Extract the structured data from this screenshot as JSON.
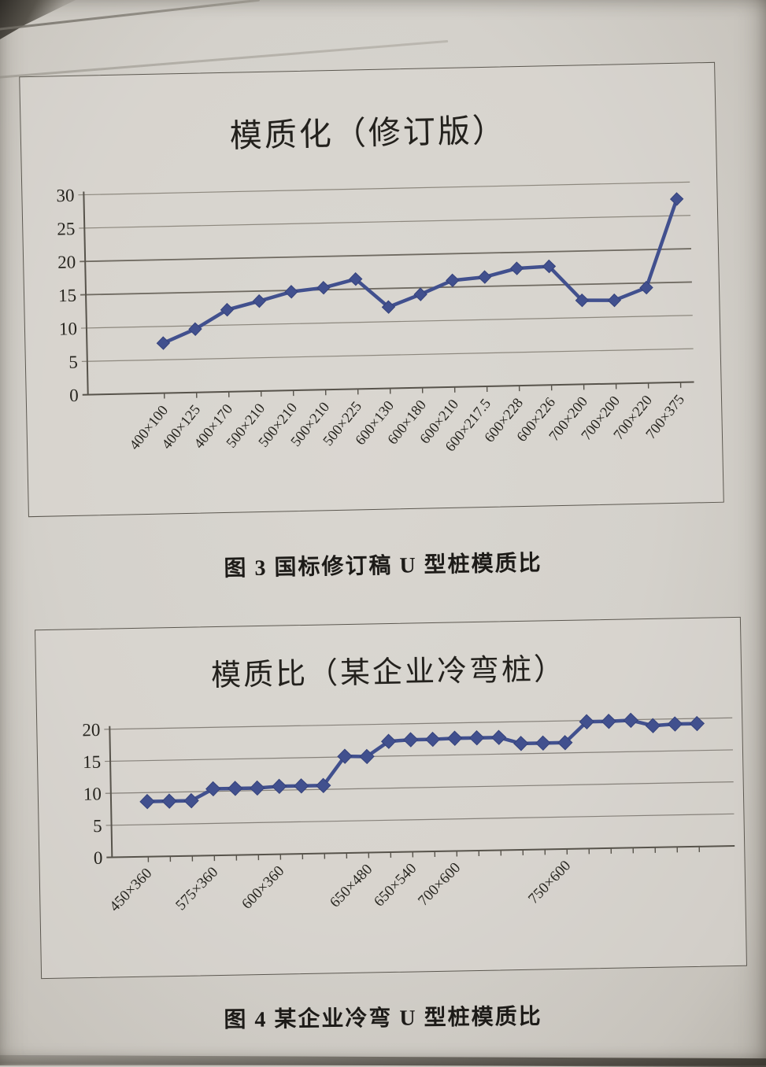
{
  "figure3": {
    "caption": "图 3 国标修订稿 U 型桩模质比"
  },
  "figure4": {
    "caption": "图 4 某企业冷弯 U 型桩模质比"
  },
  "chart_data": [
    {
      "type": "line",
      "title": "模质化（修订版）",
      "categories": [
        "400×100",
        "400×125",
        "400×170",
        "500×210",
        "500×210",
        "500×210",
        "500×225",
        "600×130",
        "600×180",
        "600×210",
        "600×217.5",
        "600×228",
        "600×226",
        "700×200",
        "700×200",
        "700×220",
        "700×375"
      ],
      "values": [
        7.5,
        9.5,
        12.3,
        13.5,
        14.8,
        15.3,
        16.5,
        12.2,
        14.0,
        16.0,
        16.4,
        17.6,
        17.8,
        12.6,
        12.5,
        14.3,
        27.5
      ],
      "xlabel": "",
      "ylabel": "",
      "ylim": [
        0,
        30
      ],
      "yticks": [
        0,
        5,
        10,
        15,
        20,
        25,
        30
      ],
      "grid": true,
      "legend": "none",
      "marker": "diamond",
      "line_color": "#41508e"
    },
    {
      "type": "line",
      "title": "模质比（某企业冷弯桩）",
      "categories_shown": [
        "450×360",
        "575×360",
        "600×360",
        "650×480",
        "650×540",
        "700×600",
        "750×600"
      ],
      "category_tick_indices": [
        0,
        3,
        6,
        10,
        12,
        14,
        19
      ],
      "values": [
        8.6,
        8.6,
        8.6,
        10.4,
        10.4,
        10.4,
        10.6,
        10.6,
        10.6,
        15.1,
        15.0,
        17.3,
        17.5,
        17.5,
        17.6,
        17.6,
        17.6,
        16.6,
        16.6,
        16.6,
        19.8,
        19.8,
        19.9,
        19.0,
        19.2,
        19.2
      ],
      "xlabel": "",
      "ylabel": "",
      "ylim": [
        0,
        20
      ],
      "yticks": [
        0,
        5,
        10,
        15,
        20
      ],
      "grid": true,
      "legend": "none",
      "marker": "diamond",
      "line_color": "#41508e"
    }
  ]
}
